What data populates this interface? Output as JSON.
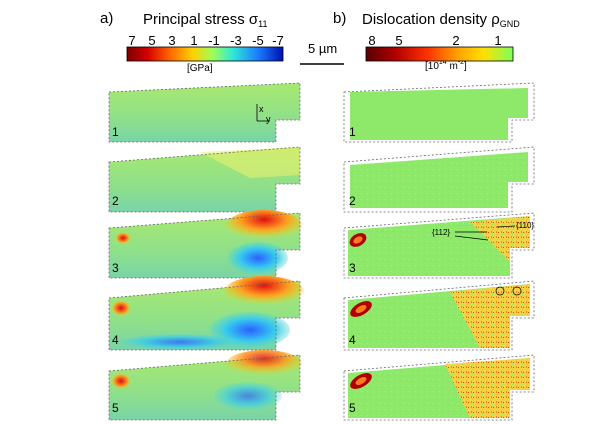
{
  "panels": {
    "a": {
      "letter": "a)",
      "title_main": "Principal stress σ",
      "title_sub": "11",
      "colorbar_ticks": [
        "7",
        "5",
        "3",
        "1",
        "-1",
        "-3",
        "-5",
        "-7"
      ],
      "unit": "[GPa]",
      "colorbar_colors": [
        "#7a0000",
        "#d40000",
        "#ff6a00",
        "#ffd000",
        "#9cff5a",
        "#2ee8d8",
        "#1a7cff",
        "#0010b0"
      ],
      "axis_x": "x",
      "axis_y": "y"
    },
    "b": {
      "letter": "b)",
      "title_main": "Dislocation density ρ",
      "title_sub": "GND",
      "colorbar_ticks": [
        "8",
        "5",
        "2",
        "1"
      ],
      "unit_pre": "[10",
      "unit_sup": "14",
      "unit_post": " m",
      "unit_sup2": "-2",
      "unit_end": "]",
      "colorbar_colors": [
        "#5a0000",
        "#b00000",
        "#ff3300",
        "#ffa000",
        "#ffe000",
        "#7dff5a"
      ],
      "annotation_112": "{112}",
      "annotation_110": "{110}"
    }
  },
  "scale_bar": "5 µm",
  "frame_numbers": [
    "1",
    "2",
    "3",
    "4",
    "5"
  ],
  "colors": {
    "matrix_green": "#8ee86a",
    "background": "#ffffff"
  }
}
